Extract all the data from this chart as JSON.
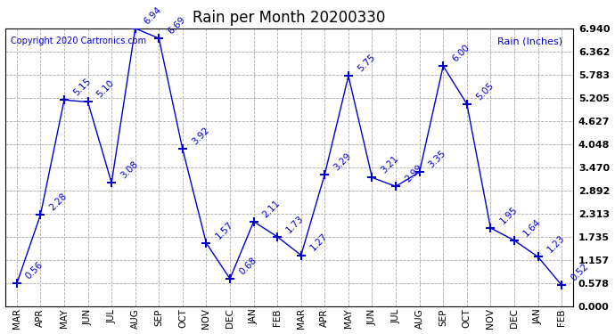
{
  "title": "Rain per Month 20200330",
  "ylabel_legend": "Rain (Inches)",
  "copyright": "Copyright 2020 Cartronics.com",
  "categories": [
    "MAR",
    "APR",
    "MAY",
    "JUN",
    "JUL",
    "AUG",
    "SEP",
    "OCT",
    "NOV",
    "DEC",
    "JAN",
    "FEB",
    "MAR",
    "APR",
    "MAY",
    "JUN",
    "JUL",
    "AUG",
    "SEP",
    "OCT",
    "NOV",
    "DEC",
    "JAN",
    "FEB"
  ],
  "values": [
    0.56,
    2.28,
    5.15,
    5.1,
    3.08,
    6.94,
    6.69,
    3.92,
    1.57,
    0.68,
    2.11,
    1.73,
    1.27,
    3.29,
    5.75,
    3.21,
    2.99,
    3.35,
    6.0,
    5.05,
    1.95,
    1.64,
    1.23,
    0.52
  ],
  "line_color": "#0000cc",
  "marker": "+",
  "marker_size": 7,
  "marker_linewidth": 1.5,
  "annotation_fontsize": 7.5,
  "title_fontsize": 12,
  "copyright_fontsize": 7,
  "background_color": "#ffffff",
  "grid_color": "#aaaaaa",
  "ytick_labels": [
    "0.000",
    "0.578",
    "1.157",
    "1.735",
    "2.313",
    "2.892",
    "3.470",
    "4.048",
    "4.627",
    "5.205",
    "5.783",
    "6.362",
    "6.940"
  ],
  "ytick_values": [
    0.0,
    0.578,
    1.157,
    1.735,
    2.313,
    2.892,
    3.47,
    4.048,
    4.627,
    5.205,
    5.783,
    6.362,
    6.94
  ],
  "ymax": 6.94,
  "ymin": 0.0
}
